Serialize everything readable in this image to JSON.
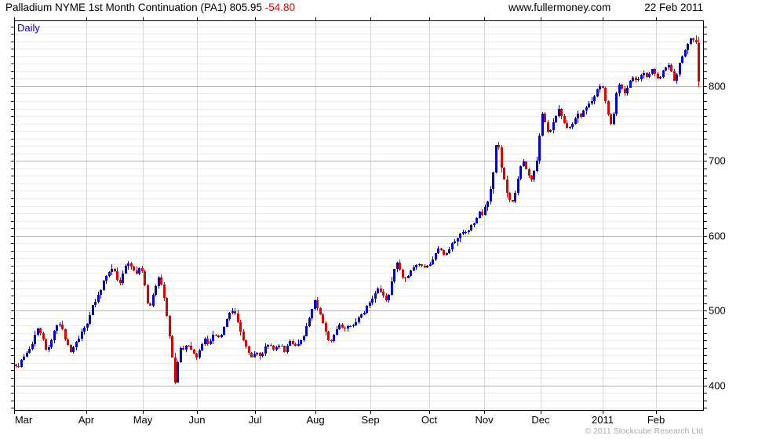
{
  "header": {
    "title": "Palladium NYME 1st Month Continuation (PA1)",
    "last_price": "805.95",
    "change": "-54.80",
    "website": "www.fullermoney.com",
    "date": "22 Feb 2011"
  },
  "chart": {
    "timeframe_label": "Daily",
    "copyright": "© 2011 Stockcube Research Ltd"
  },
  "chart_data": {
    "type": "candlestick",
    "title": "Palladium NYME 1st Month Continuation (PA1)",
    "instrument": "PA1",
    "timeframe": "Daily",
    "last": 805.95,
    "change": -54.8,
    "as_of": "22 Feb 2011",
    "grid": true,
    "legend": "none",
    "y_axis": {
      "side": "right",
      "top_price": 888,
      "bottom_price": 367,
      "minor_step": 10,
      "major_step": 100,
      "major_labels": [
        400,
        500,
        600,
        700,
        800
      ]
    },
    "x_axis": {
      "months": [
        {
          "label": "Mar",
          "f": 0.0
        },
        {
          "label": "Apr",
          "f": 0.1048
        },
        {
          "label": "May",
          "f": 0.1868
        },
        {
          "label": "Jun",
          "f": 0.2654
        },
        {
          "label": "Jul",
          "f": 0.3497
        },
        {
          "label": "Aug",
          "f": 0.4374
        },
        {
          "label": "Sep",
          "f": 0.5171
        },
        {
          "label": "Oct",
          "f": 0.6025
        },
        {
          "label": "Nov",
          "f": 0.6823
        },
        {
          "label": "Dec",
          "f": 0.7642
        },
        {
          "label": "2011",
          "f": 0.8542
        },
        {
          "label": "Feb",
          "f": 0.9317
        }
      ]
    },
    "colors": {
      "up": "#0000cc",
      "down": "#dd0000",
      "grid_minor": "#ececec",
      "grid_month": "#d6d6d6",
      "grid_major": "#b4b4b4",
      "frame": "#000000",
      "timeframe_blue": "#0000cc",
      "copyright_gray": "#a9a9a9"
    },
    "trading_days": 250,
    "last_candle": {
      "open": 858,
      "high": 866,
      "low": 799,
      "close": 806
    },
    "price_path_fp": [
      [
        0.0,
        428
      ],
      [
        0.006,
        424
      ],
      [
        0.014,
        440
      ],
      [
        0.023,
        448
      ],
      [
        0.032,
        476
      ],
      [
        0.039,
        468
      ],
      [
        0.046,
        448
      ],
      [
        0.051,
        452
      ],
      [
        0.059,
        478
      ],
      [
        0.068,
        482
      ],
      [
        0.076,
        455
      ],
      [
        0.082,
        445
      ],
      [
        0.088,
        452
      ],
      [
        0.097,
        470
      ],
      [
        0.105,
        480
      ],
      [
        0.114,
        505
      ],
      [
        0.122,
        520
      ],
      [
        0.131,
        540
      ],
      [
        0.139,
        552
      ],
      [
        0.144,
        558
      ],
      [
        0.149,
        540
      ],
      [
        0.154,
        536
      ],
      [
        0.16,
        556
      ],
      [
        0.167,
        564
      ],
      [
        0.173,
        556
      ],
      [
        0.179,
        548
      ],
      [
        0.184,
        562
      ],
      [
        0.19,
        532
      ],
      [
        0.196,
        500
      ],
      [
        0.199,
        512
      ],
      [
        0.205,
        530
      ],
      [
        0.211,
        545
      ],
      [
        0.216,
        530
      ],
      [
        0.222,
        495
      ],
      [
        0.228,
        452
      ],
      [
        0.233,
        412
      ],
      [
        0.236,
        394
      ],
      [
        0.239,
        448
      ],
      [
        0.243,
        452
      ],
      [
        0.247,
        448
      ],
      [
        0.252,
        458
      ],
      [
        0.258,
        448
      ],
      [
        0.266,
        438
      ],
      [
        0.271,
        452
      ],
      [
        0.278,
        462
      ],
      [
        0.283,
        455
      ],
      [
        0.288,
        463
      ],
      [
        0.292,
        470
      ],
      [
        0.298,
        463
      ],
      [
        0.304,
        472
      ],
      [
        0.309,
        487
      ],
      [
        0.315,
        497
      ],
      [
        0.319,
        503
      ],
      [
        0.323,
        494
      ],
      [
        0.328,
        480
      ],
      [
        0.332,
        467
      ],
      [
        0.337,
        454
      ],
      [
        0.341,
        444
      ],
      [
        0.346,
        437
      ],
      [
        0.349,
        441
      ],
      [
        0.355,
        446
      ],
      [
        0.36,
        438
      ],
      [
        0.366,
        450
      ],
      [
        0.372,
        455
      ],
      [
        0.378,
        447
      ],
      [
        0.383,
        452
      ],
      [
        0.389,
        455
      ],
      [
        0.395,
        442
      ],
      [
        0.4,
        460
      ],
      [
        0.406,
        454
      ],
      [
        0.412,
        451
      ],
      [
        0.418,
        458
      ],
      [
        0.423,
        470
      ],
      [
        0.429,
        487
      ],
      [
        0.435,
        506
      ],
      [
        0.437,
        514
      ],
      [
        0.44,
        509
      ],
      [
        0.444,
        499
      ],
      [
        0.448,
        488
      ],
      [
        0.453,
        477
      ],
      [
        0.457,
        464
      ],
      [
        0.461,
        457
      ],
      [
        0.465,
        468
      ],
      [
        0.47,
        477
      ],
      [
        0.474,
        482
      ],
      [
        0.48,
        474
      ],
      [
        0.486,
        480
      ],
      [
        0.491,
        477
      ],
      [
        0.497,
        485
      ],
      [
        0.503,
        490
      ],
      [
        0.509,
        497
      ],
      [
        0.514,
        505
      ],
      [
        0.518,
        510
      ],
      [
        0.522,
        515
      ],
      [
        0.526,
        525
      ],
      [
        0.53,
        530
      ],
      [
        0.535,
        524
      ],
      [
        0.539,
        517
      ],
      [
        0.544,
        512
      ],
      [
        0.548,
        530
      ],
      [
        0.554,
        554
      ],
      [
        0.557,
        566
      ],
      [
        0.562,
        554
      ],
      [
        0.567,
        540
      ],
      [
        0.571,
        542
      ],
      [
        0.577,
        552
      ],
      [
        0.583,
        558
      ],
      [
        0.588,
        564
      ],
      [
        0.594,
        559
      ],
      [
        0.6,
        555
      ],
      [
        0.605,
        562
      ],
      [
        0.611,
        570
      ],
      [
        0.614,
        578
      ],
      [
        0.619,
        585
      ],
      [
        0.623,
        579
      ],
      [
        0.628,
        574
      ],
      [
        0.634,
        582
      ],
      [
        0.639,
        590
      ],
      [
        0.645,
        597
      ],
      [
        0.651,
        602
      ],
      [
        0.656,
        607
      ],
      [
        0.66,
        600
      ],
      [
        0.664,
        610
      ],
      [
        0.669,
        617
      ],
      [
        0.673,
        624
      ],
      [
        0.678,
        631
      ],
      [
        0.683,
        627
      ],
      [
        0.687,
        639
      ],
      [
        0.692,
        654
      ],
      [
        0.696,
        672
      ],
      [
        0.701,
        700
      ],
      [
        0.703,
        742
      ],
      [
        0.707,
        712
      ],
      [
        0.71,
        690
      ],
      [
        0.714,
        674
      ],
      [
        0.719,
        654
      ],
      [
        0.724,
        640
      ],
      [
        0.728,
        650
      ],
      [
        0.733,
        672
      ],
      [
        0.737,
        690
      ],
      [
        0.742,
        700
      ],
      [
        0.746,
        689
      ],
      [
        0.75,
        678
      ],
      [
        0.753,
        670
      ],
      [
        0.758,
        686
      ],
      [
        0.762,
        702
      ],
      [
        0.766,
        732
      ],
      [
        0.769,
        768
      ],
      [
        0.774,
        754
      ],
      [
        0.777,
        740
      ],
      [
        0.78,
        736
      ],
      [
        0.785,
        750
      ],
      [
        0.79,
        762
      ],
      [
        0.794,
        768
      ],
      [
        0.799,
        757
      ],
      [
        0.803,
        749
      ],
      [
        0.808,
        741
      ],
      [
        0.812,
        748
      ],
      [
        0.817,
        755
      ],
      [
        0.821,
        762
      ],
      [
        0.826,
        759
      ],
      [
        0.83,
        768
      ],
      [
        0.835,
        772
      ],
      [
        0.84,
        778
      ],
      [
        0.844,
        785
      ],
      [
        0.849,
        793
      ],
      [
        0.853,
        800
      ],
      [
        0.857,
        803
      ],
      [
        0.86,
        790
      ],
      [
        0.863,
        775
      ],
      [
        0.867,
        760
      ],
      [
        0.87,
        751
      ],
      [
        0.874,
        764
      ],
      [
        0.877,
        787
      ],
      [
        0.88,
        799
      ],
      [
        0.884,
        805
      ],
      [
        0.887,
        795
      ],
      [
        0.891,
        789
      ],
      [
        0.894,
        800
      ],
      [
        0.899,
        810
      ],
      [
        0.903,
        812
      ],
      [
        0.908,
        807
      ],
      [
        0.912,
        815
      ],
      [
        0.917,
        820
      ],
      [
        0.921,
        812
      ],
      [
        0.926,
        818
      ],
      [
        0.931,
        822
      ],
      [
        0.935,
        814
      ],
      [
        0.94,
        810
      ],
      [
        0.944,
        818
      ],
      [
        0.949,
        822
      ],
      [
        0.953,
        828
      ],
      [
        0.958,
        820
      ],
      [
        0.961,
        808
      ],
      [
        0.965,
        813
      ],
      [
        0.969,
        828
      ],
      [
        0.974,
        838
      ],
      [
        0.978,
        848
      ],
      [
        0.983,
        858
      ],
      [
        0.986,
        864
      ],
      [
        0.99,
        862
      ],
      [
        0.996,
        860
      ]
    ]
  }
}
